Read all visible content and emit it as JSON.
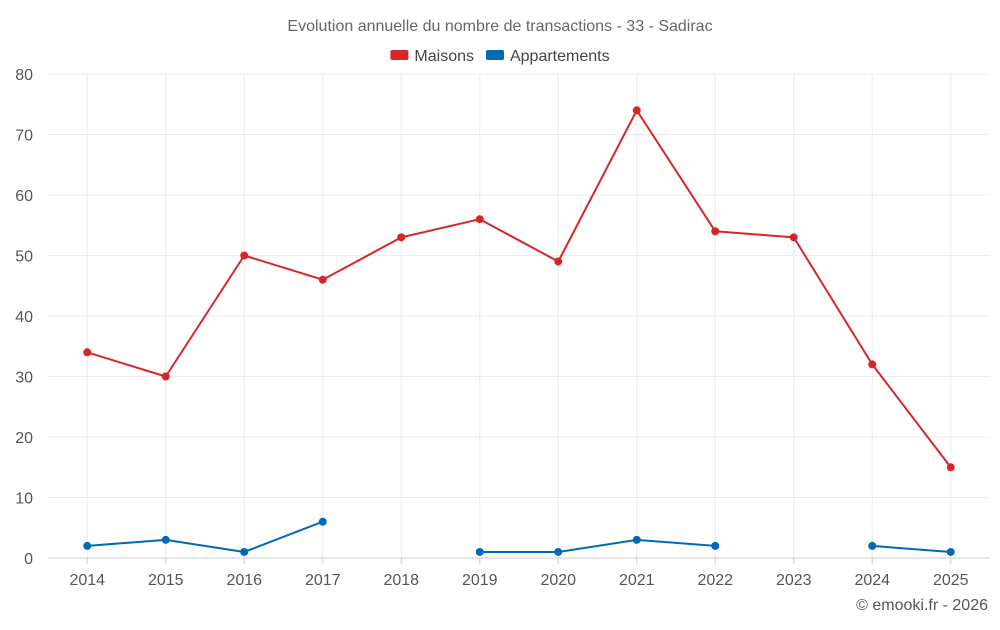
{
  "chart_data": {
    "type": "line",
    "title": "Evolution annuelle du nombre de transactions - 33 - Sadirac",
    "categories": [
      "2014",
      "2015",
      "2016",
      "2017",
      "2018",
      "2019",
      "2020",
      "2021",
      "2022",
      "2023",
      "2024",
      "2025"
    ],
    "yticks": [
      "0",
      "10",
      "20",
      "30",
      "40",
      "50",
      "60",
      "70",
      "80"
    ],
    "ylim": [
      0,
      80
    ],
    "grid": true,
    "legend_position": "top-center",
    "series": [
      {
        "name": "Maisons",
        "color": "#d62728",
        "values": [
          34,
          30,
          50,
          46,
          53,
          56,
          49,
          74,
          54,
          53,
          32,
          15
        ]
      },
      {
        "name": "Appartements",
        "color": "#006bb3",
        "values": [
          2,
          3,
          1,
          6,
          null,
          1,
          1,
          3,
          2,
          null,
          2,
          1
        ]
      }
    ],
    "xlabel": "",
    "ylabel": ""
  },
  "watermark": "© emooki.fr - 2026"
}
